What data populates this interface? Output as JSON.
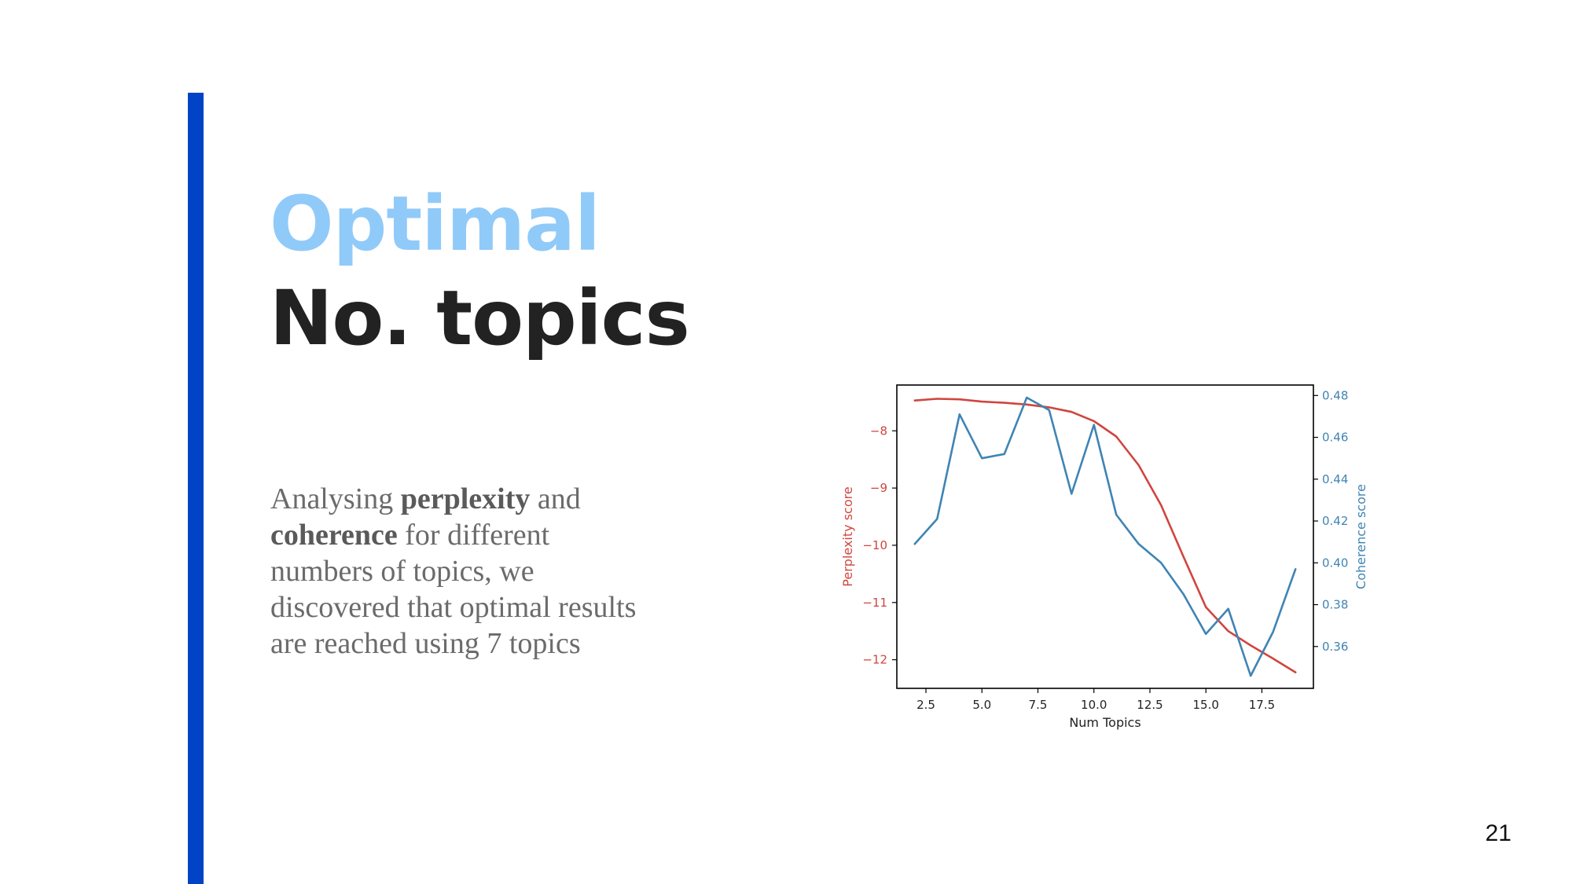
{
  "slide": {
    "title_line1": "Optimal",
    "title_line2": "No. topics",
    "body": {
      "part1": "Analysing ",
      "bold1": "perplexity",
      "part2": " and ",
      "bold2": "coherence",
      "part3": " for different numbers of topics, we discovered that optimal results are reached using 7 topics"
    },
    "page_number": "21",
    "colors": {
      "accent_bar": "#0043c6",
      "title_highlight": "#90caf9",
      "title_dark": "#222222"
    }
  },
  "chart_data": {
    "type": "line",
    "xlabel": "Num Topics",
    "ylabel_left": "Perplexity score",
    "ylabel_right": "Coherence score",
    "xlim": [
      1.2,
      19.8
    ],
    "ylim_left": [
      -12.5,
      -7.2
    ],
    "ylim_right": [
      0.34,
      0.485
    ],
    "x_ticks": [
      2.5,
      5.0,
      7.5,
      10.0,
      12.5,
      15.0,
      17.5
    ],
    "x_tick_labels": [
      "2.5",
      "5.0",
      "7.5",
      "10.0",
      "12.5",
      "15.0",
      "17.5"
    ],
    "y_left_ticks": [
      -8,
      -9,
      -10,
      -11,
      -12
    ],
    "y_left_tick_labels": [
      "−8",
      "−9",
      "−10",
      "−11",
      "−12"
    ],
    "y_right_ticks": [
      0.48,
      0.46,
      0.44,
      0.42,
      0.4,
      0.38,
      0.36
    ],
    "y_right_tick_labels": [
      "0.48",
      "0.46",
      "0.44",
      "0.42",
      "0.40",
      "0.38",
      "0.36"
    ],
    "series": [
      {
        "name": "Perplexity score",
        "axis": "left",
        "color": "#d0453f",
        "x": [
          2,
          3,
          4,
          5,
          6,
          7,
          8,
          9,
          10,
          11,
          12,
          13,
          14,
          15,
          16,
          17,
          18,
          19
        ],
        "values": [
          -7.47,
          -7.44,
          -7.45,
          -7.49,
          -7.51,
          -7.54,
          -7.59,
          -7.67,
          -7.83,
          -8.1,
          -8.6,
          -9.3,
          -10.2,
          -11.08,
          -11.5,
          -11.75,
          -11.98,
          -12.22
        ]
      },
      {
        "name": "Coherence score",
        "axis": "right",
        "color": "#3f84b4",
        "x": [
          2,
          3,
          4,
          5,
          6,
          7,
          8,
          9,
          10,
          11,
          12,
          13,
          14,
          15,
          16,
          17,
          18,
          19
        ],
        "values": [
          0.409,
          0.421,
          0.471,
          0.45,
          0.452,
          0.479,
          0.473,
          0.433,
          0.466,
          0.423,
          0.409,
          0.4,
          0.385,
          0.366,
          0.378,
          0.346,
          0.367,
          0.397
        ]
      }
    ]
  }
}
